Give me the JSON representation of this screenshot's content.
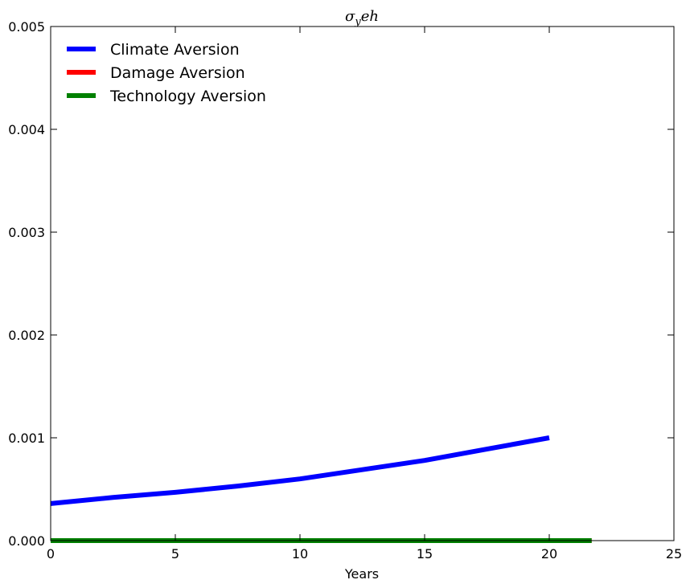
{
  "chart_data": {
    "type": "line",
    "title": "σ_y e h",
    "xlabel": "Years",
    "ylabel": "",
    "xlim": [
      0,
      25
    ],
    "ylim": [
      0,
      0.005
    ],
    "xticks": [
      "0",
      "5",
      "10",
      "15",
      "20",
      "25"
    ],
    "yticks": [
      "0.000",
      "0.001",
      "0.002",
      "0.003",
      "0.004",
      "0.005"
    ],
    "grid": false,
    "legend_position": "top-left",
    "series": [
      {
        "name": "Climate Aversion",
        "color": "#0000ff",
        "x": [
          0,
          2.5,
          5,
          7.5,
          10,
          12.5,
          15,
          17.5,
          20
        ],
        "y": [
          0.00036,
          0.00042,
          0.00047,
          0.00053,
          0.0006,
          0.00069,
          0.00078,
          0.00089,
          0.001
        ]
      },
      {
        "name": "Damage Aversion",
        "color": "#ff0000",
        "x": [
          0,
          21.7
        ],
        "y": [
          0.0,
          0.0
        ]
      },
      {
        "name": "Technology Aversion",
        "color": "#008000",
        "x": [
          0,
          21.7
        ],
        "y": [
          0.0,
          0.0
        ]
      }
    ]
  }
}
